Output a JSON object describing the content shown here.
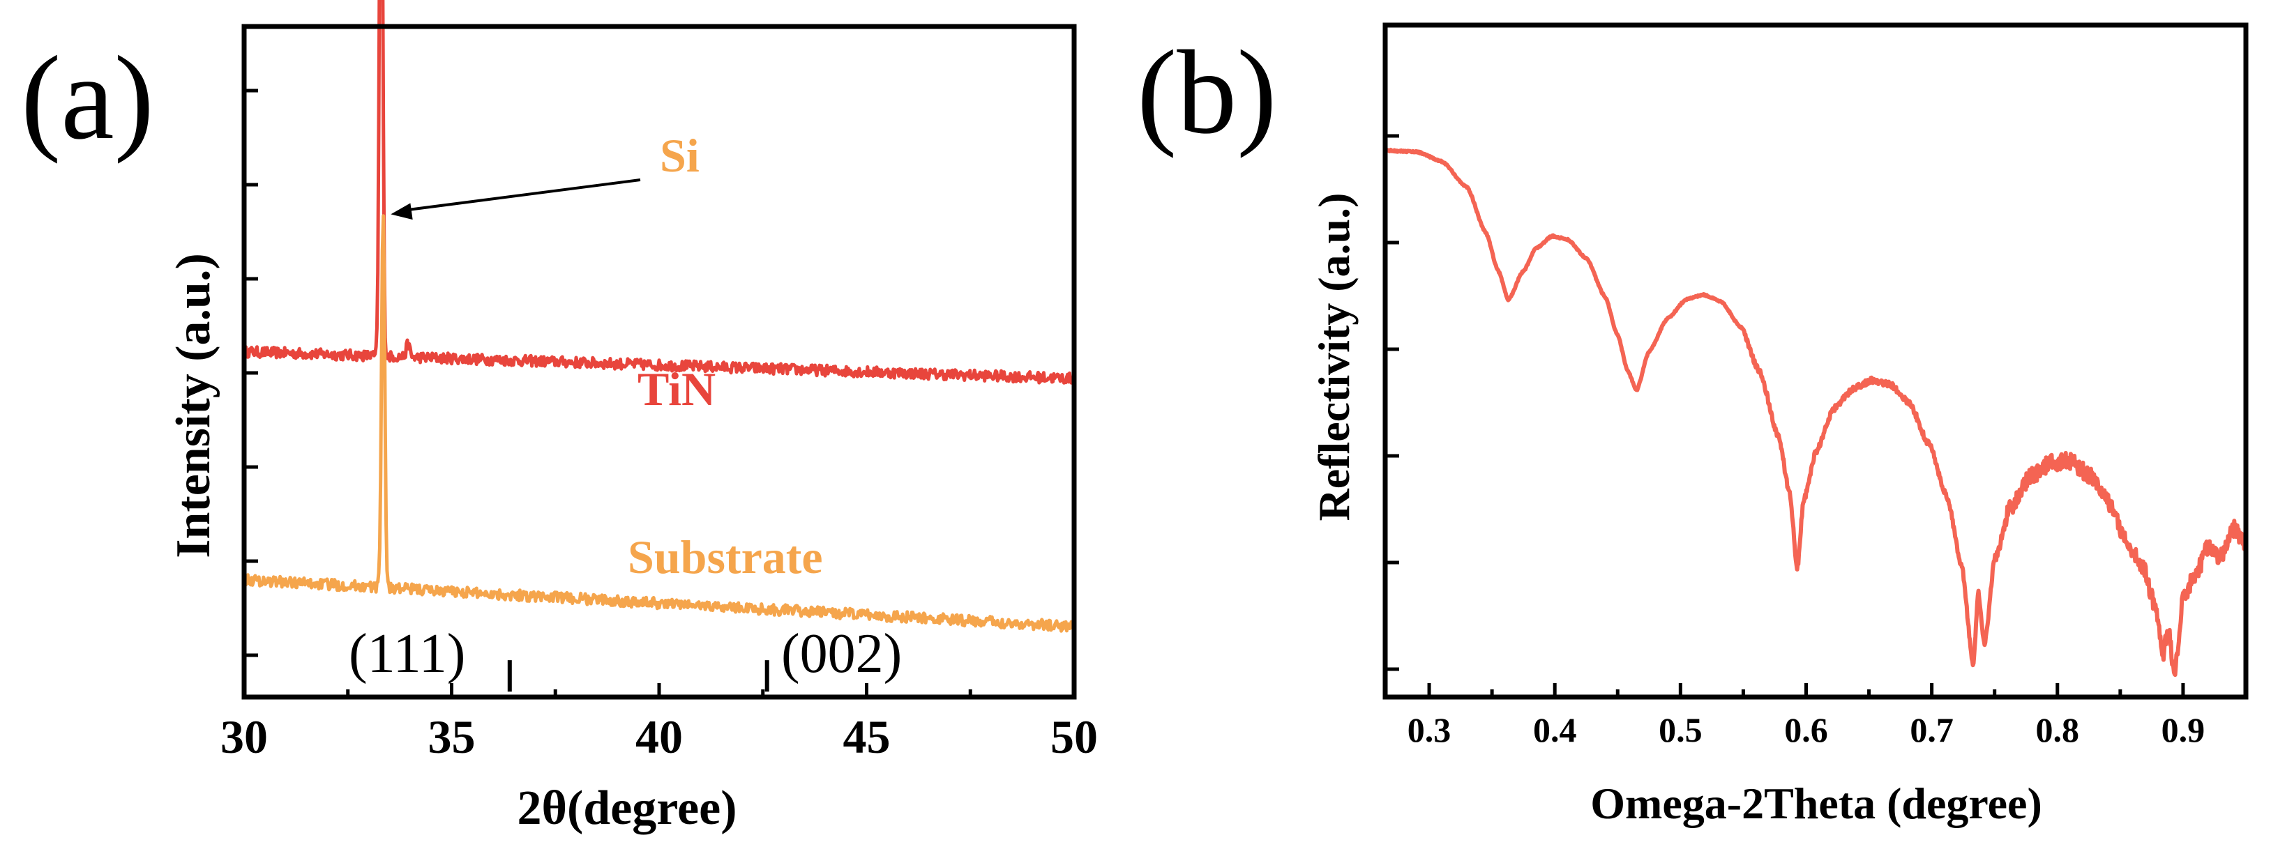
{
  "chart_data": [
    {
      "panel_label": "(a)",
      "type": "line",
      "xlabel": "2θ(degree)",
      "ylabel": "Intensity (a.u.)",
      "xlim": [
        30,
        50
      ],
      "ylim": [
        0,
        100
      ],
      "xticks": [
        30,
        35,
        40,
        45,
        50
      ],
      "y_ticks_count": 7,
      "y_tick_labels_shown": false,
      "series": [
        {
          "name": "TiN",
          "color": "#e8453c",
          "baseline_start": 51.5,
          "baseline_end": 47.5,
          "peaks": [
            {
              "x": 33.3,
              "height": 95.0
            },
            {
              "x": 33.95,
              "height": 2.0
            }
          ]
        },
        {
          "name": "Substrate",
          "color": "#f5a54c",
          "baseline_start": 17.5,
          "baseline_end": 10.5,
          "peaks": [
            {
              "x": 33.35,
              "height": 56.0
            }
          ]
        }
      ],
      "annotations": [
        {
          "text": "Si",
          "color": "#f5a54c",
          "arrow_to_x": 33.4,
          "arrow_to_y": 72
        },
        {
          "text": "TiN",
          "color": "#e8453c"
        },
        {
          "text": "Substrate",
          "color": "#f5a54c"
        }
      ],
      "reference_lines": [
        {
          "label": "(111)",
          "x": 36.4
        },
        {
          "label": "(002)",
          "x": 42.6
        }
      ]
    },
    {
      "panel_label": "(b)",
      "type": "line",
      "xlabel": "Omega-2Theta (degree)",
      "ylabel": "Reflectivity (a.u.)",
      "xlim": [
        0.265,
        0.95
      ],
      "ylim": [
        0,
        100
      ],
      "xticks": [
        0.3,
        0.4,
        0.5,
        0.6,
        0.7,
        0.8,
        0.9
      ],
      "y_ticks_count": 6,
      "y_tick_labels_shown": false,
      "series": [
        {
          "name": "Reflectivity",
          "color": "#f46453",
          "points": [
            [
              0.265,
              82.7
            ],
            [
              0.29,
              82.5
            ],
            [
              0.31,
              81.0
            ],
            [
              0.33,
              77.0
            ],
            [
              0.345,
              70.0
            ],
            [
              0.355,
              64.0
            ],
            [
              0.363,
              59.5
            ],
            [
              0.375,
              64.0
            ],
            [
              0.385,
              67.5
            ],
            [
              0.398,
              69.4
            ],
            [
              0.41,
              68.9
            ],
            [
              0.425,
              66.0
            ],
            [
              0.44,
              60.0
            ],
            [
              0.45,
              54.0
            ],
            [
              0.458,
              48.5
            ],
            [
              0.465,
              45.4
            ],
            [
              0.475,
              51.5
            ],
            [
              0.49,
              56.7
            ],
            [
              0.505,
              59.6
            ],
            [
              0.518,
              60.3
            ],
            [
              0.532,
              59.3
            ],
            [
              0.548,
              55.3
            ],
            [
              0.563,
              48.3
            ],
            [
              0.578,
              38.3
            ],
            [
              0.587,
              29.3
            ],
            [
              0.593,
              17.8
            ],
            [
              0.598,
              28.3
            ],
            [
              0.608,
              36.0
            ],
            [
              0.622,
              42.6
            ],
            [
              0.638,
              45.8
            ],
            [
              0.652,
              47.0
            ],
            [
              0.667,
              46.4
            ],
            [
              0.682,
              43.5
            ],
            [
              0.698,
              37.0
            ],
            [
              0.712,
              29.0
            ],
            [
              0.724,
              18.0
            ],
            [
              0.733,
              2.5
            ],
            [
              0.737,
              14.0
            ],
            [
              0.742,
              6.0
            ],
            [
              0.75,
              19.0
            ],
            [
              0.762,
              27.0
            ],
            [
              0.778,
              32.0
            ],
            [
              0.795,
              34.2
            ],
            [
              0.81,
              34.5
            ],
            [
              0.825,
              32.4
            ],
            [
              0.84,
              28.3
            ],
            [
              0.855,
              22.0
            ],
            [
              0.868,
              18.0
            ],
            [
              0.878,
              12.0
            ],
            [
              0.884,
              4.0
            ],
            [
              0.888,
              9.0
            ],
            [
              0.893,
              0.8
            ],
            [
              0.9,
              13.0
            ],
            [
              0.91,
              17.0
            ],
            [
              0.92,
              21.0
            ],
            [
              0.93,
              19.5
            ],
            [
              0.94,
              24.0
            ],
            [
              0.95,
              21.5
            ]
          ]
        }
      ]
    }
  ]
}
